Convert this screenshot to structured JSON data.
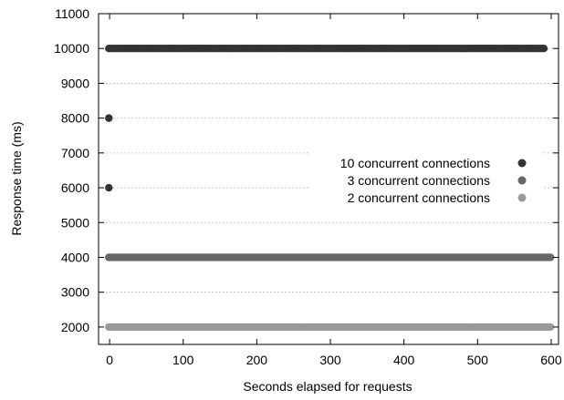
{
  "chart_data": {
    "type": "scatter",
    "title": "",
    "xlabel": "Seconds elapsed for requests",
    "ylabel": "Response time (ms)",
    "xlim": [
      -15,
      610
    ],
    "ylim": [
      1500,
      11000
    ],
    "x_ticks": [
      0,
      100,
      200,
      300,
      400,
      500,
      600
    ],
    "y_ticks": [
      2000,
      3000,
      4000,
      5000,
      6000,
      7000,
      8000,
      9000,
      10000,
      11000
    ],
    "grid": true,
    "legend_position": "center-right",
    "series": [
      {
        "name": "10 concurrent connections",
        "color": "#333333",
        "bands": [
          {
            "y": 10000,
            "x_start": -1,
            "x_end": 590,
            "step": 3
          }
        ],
        "points": [
          {
            "x": -1,
            "y": 8000
          },
          {
            "x": -1,
            "y": 6000
          }
        ]
      },
      {
        "name": "3 concurrent connections",
        "color": "#666666",
        "bands": [
          {
            "y": 4000,
            "x_start": -1,
            "x_end": 600,
            "step": 3
          }
        ],
        "points": []
      },
      {
        "name": "2 concurrent connections",
        "color": "#999999",
        "bands": [
          {
            "y": 2000,
            "x_start": -1,
            "x_end": 600,
            "step": 3
          }
        ],
        "points": []
      }
    ]
  }
}
